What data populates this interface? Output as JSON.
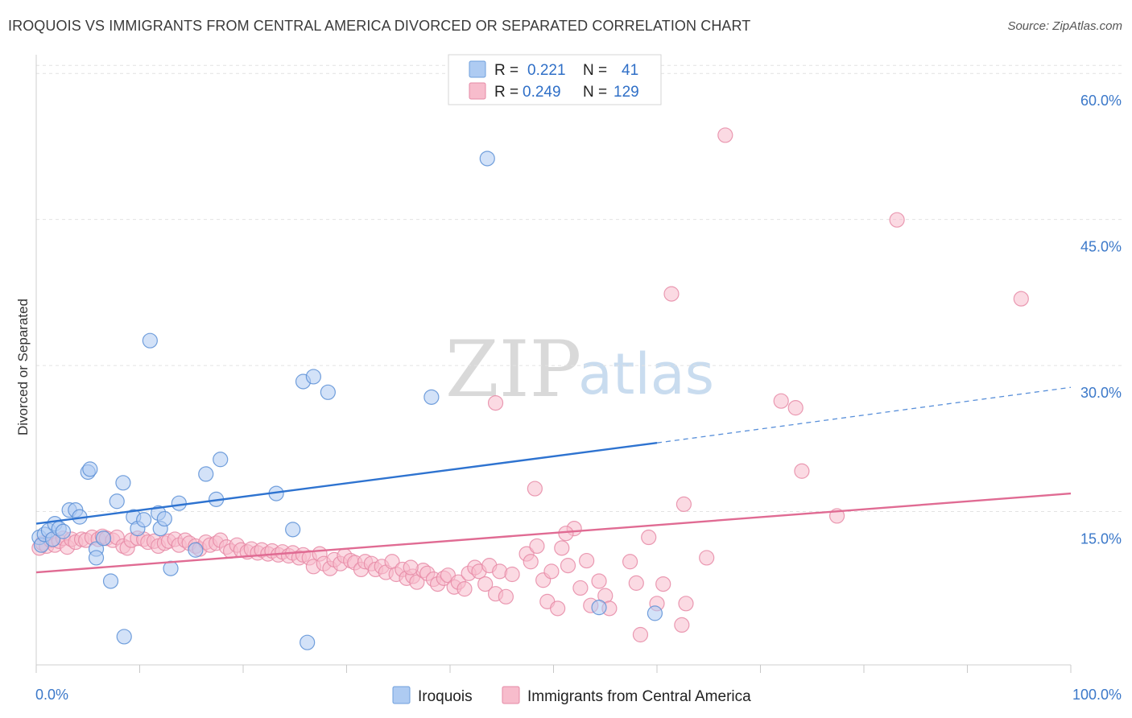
{
  "header": {
    "title": "IROQUOIS VS IMMIGRANTS FROM CENTRAL AMERICA DIVORCED OR SEPARATED CORRELATION CHART",
    "source": "Source: ZipAtlas.com"
  },
  "watermark": {
    "zip": "ZIP",
    "atlas": "atlas"
  },
  "legend_top": {
    "rows": [
      {
        "r_label": "R =",
        "r_value": "0.221",
        "n_label": "N =",
        "n_value": "41",
        "color": "#aecbf2"
      },
      {
        "r_label": "R =",
        "r_value": "0.249",
        "n_label": "N =",
        "n_value": "129",
        "color": "#f7bccc"
      }
    ]
  },
  "legend_bottom": {
    "items": [
      {
        "label": "Iroquois",
        "color": "#aecbf2"
      },
      {
        "label": "Immigrants from Central America",
        "color": "#f7bccc"
      }
    ]
  },
  "chart_data": {
    "type": "scatter",
    "title": "IROQUOIS VS IMMIGRANTS FROM CENTRAL AMERICA DIVORCED OR SEPARATED CORRELATION CHART",
    "xlabel": "",
    "ylabel": "Divorced or Separated",
    "xlim": [
      0,
      100
    ],
    "ylim": [
      0,
      62
    ],
    "x_tick_labels": {
      "0": "0.0%",
      "100": "100.0%"
    },
    "y_ticks": [
      15,
      30,
      45,
      60
    ],
    "y_tick_labels": [
      "15.0%",
      "30.0%",
      "45.0%",
      "60.0%"
    ],
    "grid": true,
    "legend_position": "top-center",
    "series": [
      {
        "name": "Iroquois",
        "color": "#5b8fd6",
        "fill": "#aecbf2",
        "trend": {
          "x": [
            0,
            60
          ],
          "y": [
            14.5,
            22.8
          ],
          "dashed_to": [
            100,
            28.5
          ],
          "color": "#2e73d0"
        },
        "points": [
          [
            0.3,
            13.1
          ],
          [
            0.5,
            12.3
          ],
          [
            0.8,
            13.4
          ],
          [
            1.2,
            13.8
          ],
          [
            1.6,
            12.9
          ],
          [
            1.8,
            14.5
          ],
          [
            2.2,
            14.0
          ],
          [
            2.6,
            13.7
          ],
          [
            3.2,
            15.9
          ],
          [
            3.8,
            15.9
          ],
          [
            4.2,
            15.2
          ],
          [
            5.0,
            19.8
          ],
          [
            5.2,
            20.1
          ],
          [
            5.8,
            11.9
          ],
          [
            5.8,
            11.0
          ],
          [
            6.5,
            13.0
          ],
          [
            7.2,
            8.6
          ],
          [
            7.8,
            16.8
          ],
          [
            8.4,
            18.7
          ],
          [
            8.5,
            2.9
          ],
          [
            9.4,
            15.2
          ],
          [
            9.8,
            14.0
          ],
          [
            10.4,
            14.9
          ],
          [
            11.0,
            33.3
          ],
          [
            11.8,
            15.6
          ],
          [
            12.0,
            14.0
          ],
          [
            12.4,
            15.0
          ],
          [
            13.0,
            9.9
          ],
          [
            13.8,
            16.6
          ],
          [
            15.4,
            11.8
          ],
          [
            16.4,
            19.6
          ],
          [
            17.4,
            17.0
          ],
          [
            17.8,
            21.1
          ],
          [
            23.2,
            17.6
          ],
          [
            24.8,
            13.9
          ],
          [
            25.8,
            29.1
          ],
          [
            26.2,
            2.3
          ],
          [
            26.8,
            29.6
          ],
          [
            28.2,
            28.0
          ],
          [
            38.2,
            27.5
          ],
          [
            43.6,
            52.0
          ],
          [
            54.4,
            5.9
          ],
          [
            59.8,
            5.3
          ]
        ]
      },
      {
        "name": "Immigrants from Central America",
        "color": "#e68aa6",
        "fill": "#f7bccc",
        "trend": {
          "x": [
            0,
            100
          ],
          "y": [
            9.5,
            17.6
          ],
          "color": "#e06b93"
        },
        "points": [
          [
            0.3,
            12.0
          ],
          [
            0.6,
            12.5
          ],
          [
            1.0,
            12.2
          ],
          [
            1.4,
            12.8
          ],
          [
            1.8,
            12.3
          ],
          [
            2.2,
            12.7
          ],
          [
            2.6,
            13.0
          ],
          [
            3.0,
            12.1
          ],
          [
            3.4,
            12.9
          ],
          [
            3.8,
            12.6
          ],
          [
            4.4,
            12.9
          ],
          [
            4.8,
            12.8
          ],
          [
            5.4,
            13.1
          ],
          [
            6.0,
            12.9
          ],
          [
            6.4,
            13.2
          ],
          [
            6.8,
            13.0
          ],
          [
            7.4,
            12.8
          ],
          [
            7.8,
            13.1
          ],
          [
            8.4,
            12.2
          ],
          [
            8.8,
            12.0
          ],
          [
            9.2,
            12.8
          ],
          [
            9.8,
            13.0
          ],
          [
            10.4,
            12.9
          ],
          [
            10.8,
            12.6
          ],
          [
            11.4,
            12.7
          ],
          [
            11.8,
            12.2
          ],
          [
            12.4,
            12.5
          ],
          [
            12.8,
            12.7
          ],
          [
            13.4,
            12.9
          ],
          [
            13.8,
            12.3
          ],
          [
            14.4,
            12.8
          ],
          [
            14.8,
            12.5
          ],
          [
            15.4,
            12.2
          ],
          [
            15.8,
            11.9
          ],
          [
            16.4,
            12.6
          ],
          [
            16.8,
            12.3
          ],
          [
            17.4,
            12.5
          ],
          [
            17.8,
            12.8
          ],
          [
            18.4,
            12.1
          ],
          [
            18.8,
            11.7
          ],
          [
            19.4,
            12.3
          ],
          [
            19.8,
            11.8
          ],
          [
            20.4,
            11.6
          ],
          [
            20.8,
            11.9
          ],
          [
            21.4,
            11.5
          ],
          [
            21.8,
            11.8
          ],
          [
            22.4,
            11.4
          ],
          [
            22.8,
            11.7
          ],
          [
            23.4,
            11.3
          ],
          [
            23.8,
            11.6
          ],
          [
            24.4,
            11.2
          ],
          [
            24.8,
            11.5
          ],
          [
            25.4,
            11.0
          ],
          [
            25.8,
            11.3
          ],
          [
            26.4,
            11.0
          ],
          [
            26.8,
            10.1
          ],
          [
            27.4,
            11.4
          ],
          [
            27.8,
            10.4
          ],
          [
            28.4,
            9.9
          ],
          [
            28.8,
            10.8
          ],
          [
            29.4,
            10.4
          ],
          [
            29.8,
            11.2
          ],
          [
            30.4,
            10.7
          ],
          [
            30.8,
            10.5
          ],
          [
            31.4,
            9.8
          ],
          [
            31.8,
            10.6
          ],
          [
            32.4,
            10.4
          ],
          [
            32.8,
            9.8
          ],
          [
            33.4,
            10.1
          ],
          [
            33.8,
            9.5
          ],
          [
            34.4,
            10.6
          ],
          [
            34.8,
            9.3
          ],
          [
            35.4,
            9.8
          ],
          [
            35.8,
            8.9
          ],
          [
            36.4,
            9.1
          ],
          [
            36.8,
            8.5
          ],
          [
            37.4,
            9.7
          ],
          [
            37.8,
            9.4
          ],
          [
            38.4,
            8.8
          ],
          [
            38.8,
            8.3
          ],
          [
            39.4,
            8.9
          ],
          [
            39.8,
            9.2
          ],
          [
            40.4,
            8.0
          ],
          [
            40.8,
            8.5
          ],
          [
            41.4,
            7.8
          ],
          [
            41.8,
            9.4
          ],
          [
            42.4,
            10.0
          ],
          [
            42.8,
            9.6
          ],
          [
            43.4,
            8.3
          ],
          [
            43.8,
            10.2
          ],
          [
            44.4,
            7.3
          ],
          [
            44.8,
            9.6
          ],
          [
            45.4,
            7.0
          ],
          [
            46.0,
            9.3
          ],
          [
            47.4,
            11.4
          ],
          [
            47.8,
            10.6
          ],
          [
            48.4,
            12.2
          ],
          [
            49.0,
            8.7
          ],
          [
            49.4,
            6.5
          ],
          [
            49.8,
            9.6
          ],
          [
            50.4,
            5.8
          ],
          [
            50.8,
            12.0
          ],
          [
            51.4,
            10.2
          ],
          [
            52.0,
            14.0
          ],
          [
            52.6,
            7.9
          ],
          [
            53.2,
            10.7
          ],
          [
            53.6,
            6.1
          ],
          [
            54.4,
            8.6
          ],
          [
            55.0,
            7.1
          ],
          [
            55.4,
            5.8
          ],
          [
            57.4,
            10.6
          ],
          [
            58.0,
            8.4
          ],
          [
            58.4,
            3.1
          ],
          [
            59.2,
            13.1
          ],
          [
            60.0,
            6.3
          ],
          [
            60.6,
            8.3
          ],
          [
            62.4,
            4.1
          ],
          [
            62.6,
            16.5
          ],
          [
            62.8,
            6.3
          ],
          [
            64.8,
            11.0
          ],
          [
            61.4,
            38.1
          ],
          [
            66.6,
            54.4
          ],
          [
            83.2,
            45.7
          ],
          [
            95.2,
            37.6
          ],
          [
            48.2,
            18.1
          ],
          [
            44.4,
            26.9
          ],
          [
            72.0,
            27.1
          ],
          [
            73.4,
            26.4
          ],
          [
            74.0,
            19.9
          ],
          [
            77.4,
            15.3
          ],
          [
            51.2,
            13.5
          ],
          [
            36.2,
            10.0
          ]
        ]
      }
    ]
  }
}
